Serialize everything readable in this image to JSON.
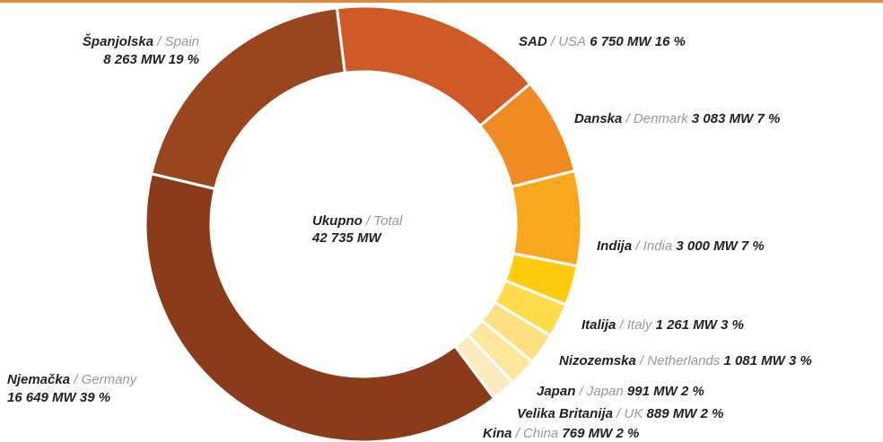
{
  "chart_data": {
    "type": "donut",
    "categories": [
      "SAD",
      "Danska",
      "Indija",
      "Italija",
      "Nizozemska",
      "Japan",
      "Velika Britanija",
      "Kina",
      "Njemačka",
      "Španjolska"
    ],
    "categories_en": [
      "USA",
      "Denmark",
      "India",
      "Italy",
      "Netherlands",
      "Japan",
      "UK",
      "China",
      "Germany",
      "Spain"
    ],
    "separator": "/",
    "values": [
      6750,
      3083,
      3000,
      1261,
      1081,
      991,
      889,
      769,
      16649,
      8263
    ],
    "value_labels": [
      "6 750 MW",
      "3 083 MW",
      "3 000 MW",
      "1 261 MW",
      "1 081 MW",
      "991 MW",
      "889 MW",
      "769 MW",
      "16 649 MW",
      "8 263 MW"
    ],
    "percents": [
      16,
      7,
      7,
      3,
      3,
      2,
      2,
      2,
      39,
      19
    ],
    "percent_labels": [
      "16 %",
      "7 %",
      "7 %",
      "3 %",
      "3 %",
      "2 %",
      "2 %",
      "2 %",
      "39 %",
      "19 %"
    ],
    "colors": [
      "#d05a26",
      "#f08a22",
      "#f7a81e",
      "#fdcc0d",
      "#fedc4c",
      "#fee082",
      "#fee69c",
      "#fdebc0",
      "#8a3b1a",
      "#99461f"
    ],
    "center_label": "Ukupno",
    "center_label_en": "Total",
    "total": 42735,
    "total_label": "42 735 MW"
  }
}
